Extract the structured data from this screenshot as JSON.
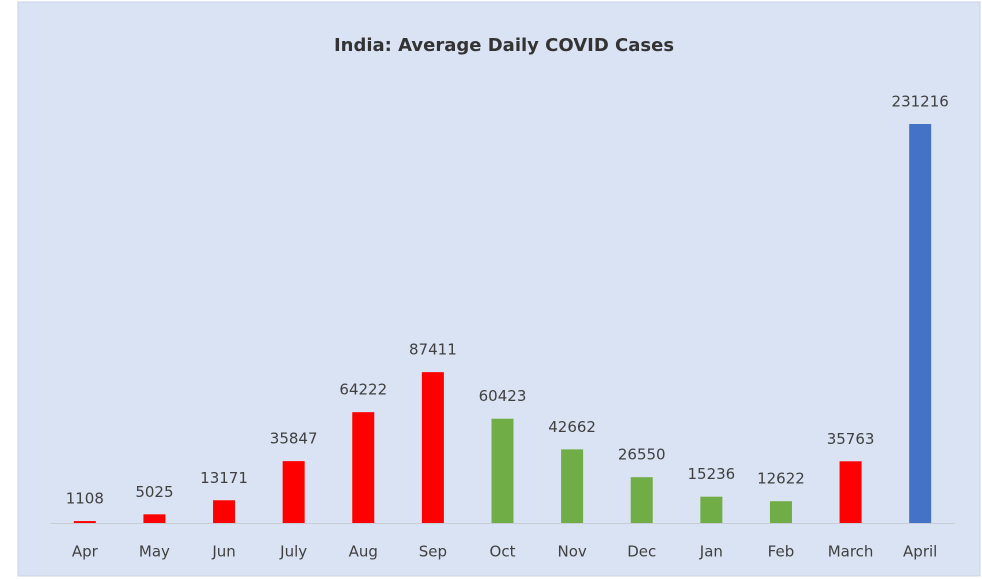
{
  "chart_data": {
    "type": "bar",
    "title": "India: Average Daily COVID Cases",
    "categories": [
      "Apr",
      "May",
      "Jun",
      "July",
      "Aug",
      "Sep",
      "Oct",
      "Nov",
      "Dec",
      "Jan",
      "Feb",
      "March",
      "April"
    ],
    "values": [
      1108,
      5025,
      13171,
      35847,
      64222,
      87411,
      60423,
      42662,
      26550,
      15236,
      12622,
      35763,
      231216
    ],
    "colors": [
      "#ff0000",
      "#ff0000",
      "#ff0000",
      "#ff0000",
      "#ff0000",
      "#ff0000",
      "#70ad47",
      "#70ad47",
      "#70ad47",
      "#70ad47",
      "#70ad47",
      "#ff0000",
      "#4472c4"
    ]
  }
}
